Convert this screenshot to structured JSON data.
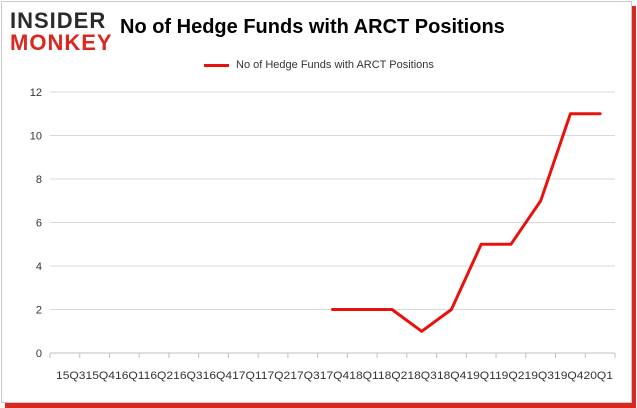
{
  "logo": {
    "line1": "INSIDER",
    "line2": "MONKEY"
  },
  "chart_data": {
    "type": "line",
    "title": "No of Hedge Funds with ARCT Positions",
    "xlabel": "",
    "ylabel": "",
    "categories": [
      "2015Q3",
      "2015Q4",
      "2016Q1",
      "2016Q2",
      "2016Q3",
      "2016Q4",
      "2017Q1",
      "2017Q2",
      "2017Q3",
      "2017Q4",
      "2018Q1",
      "2018Q2",
      "2018Q3",
      "2018Q4",
      "2019Q1",
      "2019Q2",
      "2019Q3",
      "2019Q4",
      "2020Q1"
    ],
    "x_tick_text": "15Q315Q416Q116Q216Q316Q417Q117Q217Q317Q418Q118Q218Q318Q419Q119Q219Q319Q420Q1",
    "series": [
      {
        "name": "No of Hedge Funds with ARCT Positions",
        "values": [
          null,
          null,
          null,
          null,
          null,
          null,
          null,
          null,
          null,
          2,
          2,
          2,
          1,
          2,
          5,
          5,
          7,
          11,
          11
        ]
      }
    ],
    "ylim": [
      0,
      12
    ],
    "yticks": [
      0,
      2,
      4,
      6,
      8,
      10,
      12
    ],
    "grid": true,
    "legend": "top-center",
    "colors": {
      "line": "#e8120c",
      "grid": "#d9d9d9",
      "accent": "#d8281f"
    }
  }
}
